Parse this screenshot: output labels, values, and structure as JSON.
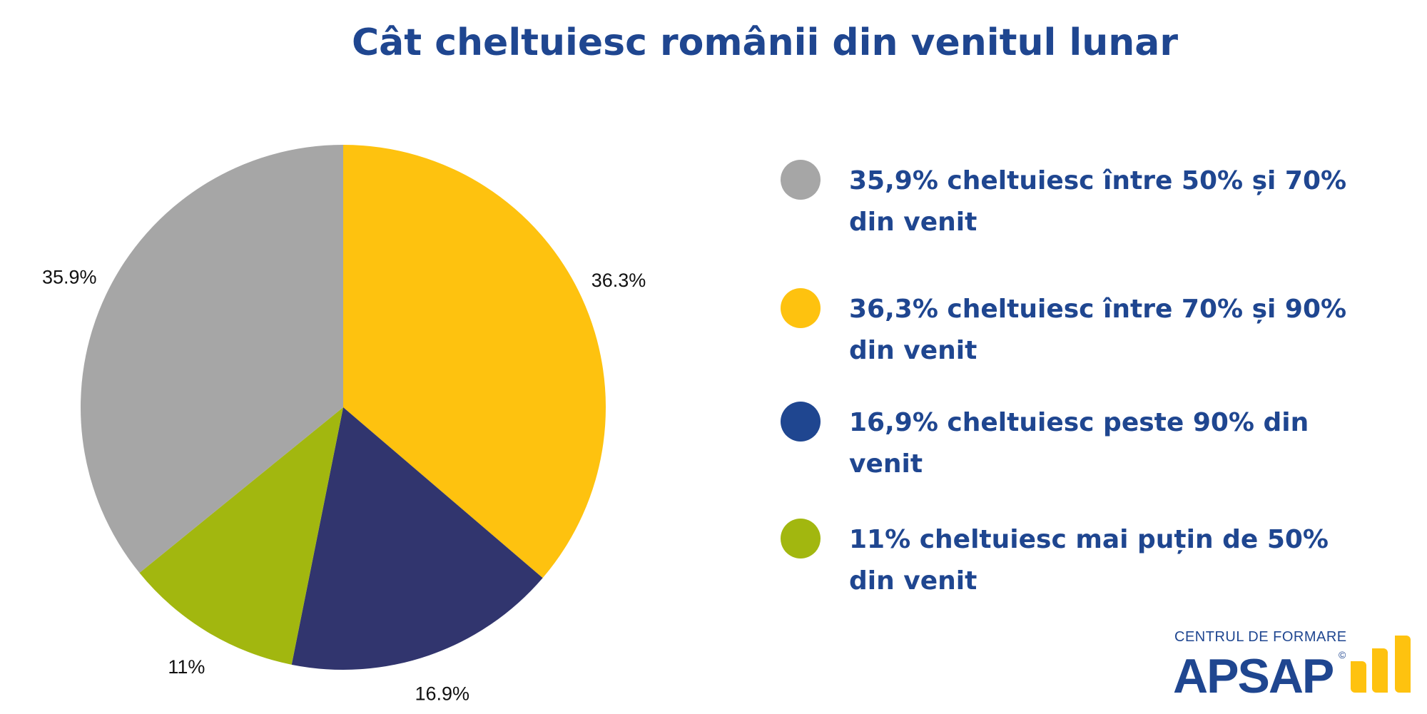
{
  "chart_data": {
    "type": "pie",
    "title": "Cât cheltuiesc românii din venitul lunar",
    "slices": [
      {
        "label": "36.3%",
        "value": 36.3,
        "color": "#fec20f",
        "legend": "36,3% cheltuiesc între 70% și 90% din venit"
      },
      {
        "label": "16.9%",
        "value": 16.9,
        "color": "#31356e",
        "legend": "16,9% cheltuiesc peste 90% din venit"
      },
      {
        "label": "11%",
        "value": 11,
        "color": "#a2b70f",
        "legend": "11% cheltuiesc mai puțin de 50% din venit"
      },
      {
        "label": "35.9%",
        "value": 35.9,
        "color": "#a6a6a6",
        "legend": "35,9% cheltuiesc între 50% și 70% din venit"
      }
    ],
    "start_angle": "top",
    "direction": "clockwise",
    "legend_placement": "right",
    "legend_order": [
      3,
      0,
      1,
      2
    ],
    "legend_dot_colors": [
      "#a6a6a6",
      "#fec20f",
      "#1f4690",
      "#a2b70f"
    ]
  },
  "logo": {
    "top": "CENTRUL DE FORMARE",
    "main": "APSAP",
    "mark": "©",
    "color": "#1f4690",
    "accent": "#fec20f"
  }
}
